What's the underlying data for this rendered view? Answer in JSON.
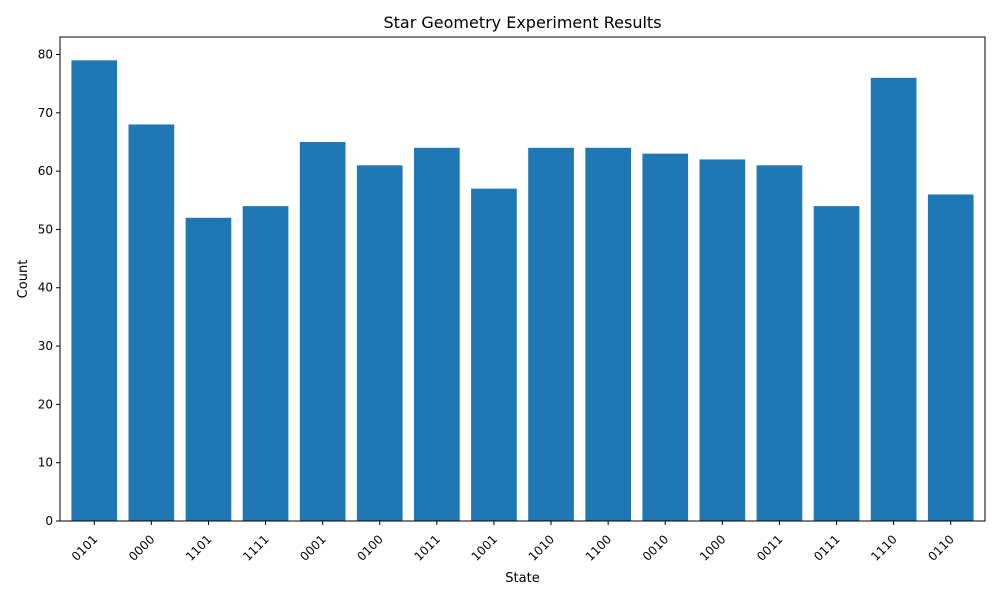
{
  "chart_data": {
    "type": "bar",
    "title": "Star Geometry Experiment Results",
    "xlabel": "State",
    "ylabel": "Count",
    "categories": [
      "0101",
      "0000",
      "1101",
      "1111",
      "0001",
      "0100",
      "1011",
      "1001",
      "1010",
      "1100",
      "0010",
      "1000",
      "0011",
      "0111",
      "1110",
      "0110"
    ],
    "values": [
      79,
      68,
      52,
      54,
      65,
      61,
      64,
      57,
      64,
      64,
      63,
      62,
      61,
      54,
      76,
      56
    ],
    "ylim": [
      0,
      83
    ],
    "yticks": [
      0,
      10,
      20,
      30,
      40,
      50,
      60,
      70,
      80
    ],
    "bar_color": "#1f77b4",
    "grid": false,
    "xtick_rotation_deg": 45
  }
}
